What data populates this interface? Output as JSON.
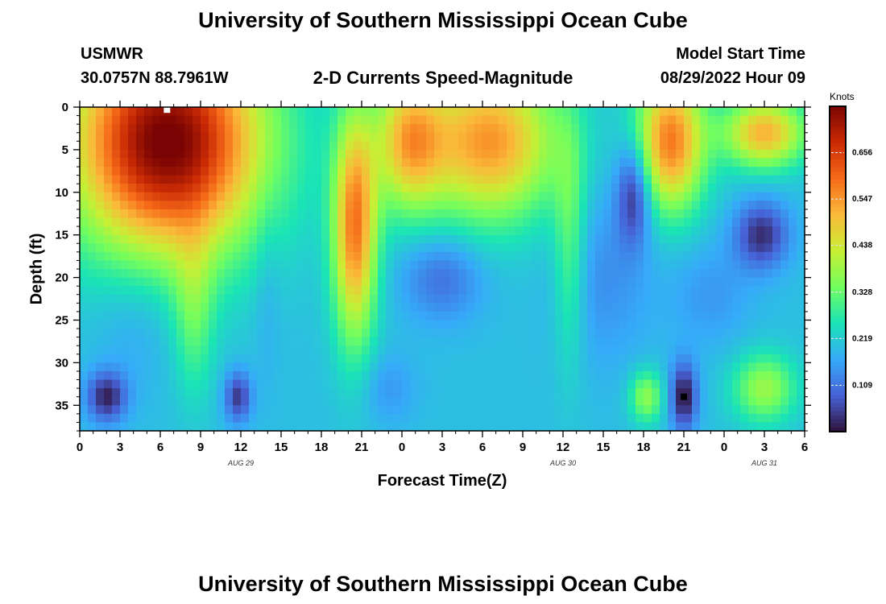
{
  "header": {
    "title": "University of Southern Mississippi Ocean Cube",
    "station": "USMWR",
    "coords": "30.0757N  88.7961W",
    "plot_title": "2-D Currents Speed-Magnitude",
    "start_label": "Model Start Time",
    "start_value": "08/29/2022 Hour 09",
    "footer_title": "University of Southern Mississippi Ocean Cube"
  },
  "colors": {
    "scale": [
      "#30123b",
      "#4662d7",
      "#36aaf9",
      "#1ae4b6",
      "#72fe5e",
      "#c8ef34",
      "#faba39",
      "#f66b19",
      "#ca2a04",
      "#7a0403"
    ]
  },
  "chart_data": {
    "type": "heatmap",
    "title": "2-D Currents Speed-Magnitude",
    "xlabel": "Forecast Time(Z)",
    "ylabel": "Depth (ft)",
    "colorbar_label": "Knots",
    "colorbar_ticks": [
      "0.656",
      "0.547",
      "0.438",
      "0.328",
      "0.219",
      "0.109"
    ],
    "colorbar_values": [
      0.656,
      0.547,
      0.438,
      0.328,
      0.219,
      0.109
    ],
    "value_range": [
      0,
      0.765
    ],
    "x_tick_labels": [
      "0",
      "3",
      "6",
      "9",
      "12",
      "15",
      "18",
      "21",
      "0",
      "3",
      "6",
      "9",
      "12",
      "15",
      "18",
      "21",
      "0",
      "3",
      "6"
    ],
    "x_range_hours": [
      0,
      54
    ],
    "date_labels": [
      {
        "text": "AUG 29",
        "hour": 12
      },
      {
        "text": "AUG 30",
        "hour": 36
      },
      {
        "text": "AUG 31",
        "hour": 51
      }
    ],
    "y_tick_labels": [
      "0",
      "5",
      "10",
      "15",
      "20",
      "25",
      "30",
      "35"
    ],
    "y_range_ft": [
      0,
      38
    ],
    "features": [
      {
        "hour": 6.5,
        "depth": 4,
        "rx": 7,
        "ry": 13,
        "value": 0.58
      },
      {
        "hour": 20.5,
        "depth": 14,
        "rx": 1.6,
        "ry": 13,
        "value": 0.38
      },
      {
        "hour": 24.5,
        "depth": 4,
        "rx": 2.5,
        "ry": 8,
        "value": 0.28
      },
      {
        "hour": 30.5,
        "depth": 4,
        "rx": 5,
        "ry": 9,
        "value": 0.35
      },
      {
        "hour": 27,
        "depth": 20,
        "rx": 3,
        "ry": 5,
        "value": -0.1
      },
      {
        "hour": 36.5,
        "depth": 16,
        "rx": 1.2,
        "ry": 14,
        "value": 0.12
      },
      {
        "hour": 44,
        "depth": 4,
        "rx": 2.5,
        "ry": 8,
        "value": 0.38
      },
      {
        "hour": 51,
        "depth": 3,
        "rx": 3,
        "ry": 4,
        "value": 0.32
      },
      {
        "hour": 41.3,
        "depth": 10,
        "rx": 1.3,
        "ry": 6,
        "value": -0.18
      },
      {
        "hour": 50.8,
        "depth": 15,
        "rx": 2,
        "ry": 4,
        "value": -0.17
      },
      {
        "hour": 39,
        "depth": 20,
        "rx": 3.5,
        "ry": 10,
        "value": -0.06
      },
      {
        "hour": 47,
        "depth": 22,
        "rx": 3,
        "ry": 6,
        "value": -0.05
      },
      {
        "hour": 2,
        "depth": 34,
        "rx": 1.5,
        "ry": 3,
        "value": -0.18
      },
      {
        "hour": 11.8,
        "depth": 34,
        "rx": 1,
        "ry": 3,
        "value": -0.16
      },
      {
        "hour": 45,
        "depth": 34,
        "rx": 1,
        "ry": 4,
        "value": -0.2
      },
      {
        "hour": 42.2,
        "depth": 34,
        "rx": 1.2,
        "ry": 3,
        "value": 0.17
      },
      {
        "hour": 51,
        "depth": 33,
        "rx": 2.3,
        "ry": 4,
        "value": 0.18
      },
      {
        "hour": 4,
        "depth": 25,
        "rx": 3,
        "ry": 8,
        "value": -0.04
      },
      {
        "hour": 8.5,
        "depth": 24,
        "rx": 1.5,
        "ry": 10,
        "value": 0.11
      },
      {
        "hour": 14,
        "depth": 20,
        "rx": 1,
        "ry": 12,
        "value": -0.03
      },
      {
        "hour": 23,
        "depth": 33,
        "rx": 2,
        "ry": 4,
        "value": -0.05
      }
    ],
    "markers": [
      {
        "hour": 6.5,
        "depth": 0.3,
        "color": "#ffffff"
      },
      {
        "hour": 45,
        "depth": 34,
        "color": "#000000"
      }
    ]
  }
}
